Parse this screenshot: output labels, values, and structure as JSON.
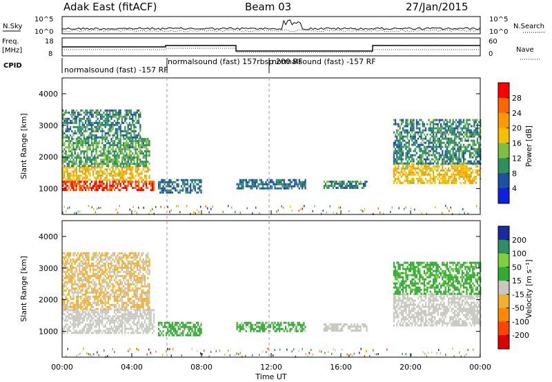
{
  "header": {
    "station": "Adak East (fitACF)",
    "beam": "Beam 03",
    "date": "27/Jan/2015"
  },
  "left_labels": {
    "nsky": "N.Sky",
    "freq_line1": "Freq.",
    "freq_line2": "[MHz]",
    "cpid": "CPID"
  },
  "right_labels": {
    "nsearch": "N.Search",
    "nave": "Nave"
  },
  "noise_panel": {
    "left_ticks": [
      "10^5",
      "10^0"
    ],
    "right_ticks": [
      "10^5",
      "10^0"
    ]
  },
  "freq_panel": {
    "left_ticks": [
      "18",
      "8"
    ],
    "right_ticks": [
      "60",
      "0"
    ]
  },
  "cpid_labels": [
    "normalsound (fast) -157 RF",
    "normalsound (fast) 157rbsp 200 RF",
    "normalsound (fast) -157 RF"
  ],
  "power_panel": {
    "ylabel": "Slant Range [km]",
    "y_ticks": [
      "4000",
      "3000",
      "2000",
      "1000"
    ],
    "colorbar_label": "Power [dB]",
    "colorbar_ticks": [
      "28",
      "24",
      "20",
      "16",
      "12",
      "8",
      "4"
    ],
    "colorbar_colors": [
      "#ff0000",
      "#ff6600",
      "#ff9900",
      "#f5c000",
      "#7fbf3f",
      "#2f8f5f",
      "#1e4fa0",
      "#1020e0"
    ]
  },
  "velocity_panel": {
    "ylabel": "Slant Range [km]",
    "y_ticks": [
      "4000",
      "3000",
      "2000",
      "1000"
    ],
    "colorbar_label": "Velocity [m s⁻¹]",
    "colorbar_ticks": [
      "200",
      "100",
      "50",
      "15",
      "-15",
      "-50",
      "-100",
      "-200"
    ],
    "colorbar_colors": [
      "#1a2aa0",
      "#2f8f5f",
      "#7fcf3f",
      "#33aa33",
      "#c8c8c0",
      "#f0b030",
      "#ff8800",
      "#ff4400",
      "#dd0000"
    ]
  },
  "x_axis": {
    "ticks": [
      "00:00",
      "04:00",
      "08:00",
      "12:00",
      "16:00",
      "20:00",
      "00:00"
    ],
    "label": "Time UT"
  },
  "chart_data": [
    {
      "type": "heatmap",
      "title": "Power",
      "xlabel": "Time UT",
      "ylabel": "Slant Range [km]",
      "x_range_hours": [
        0,
        24
      ],
      "ylim": [
        180,
        4500
      ],
      "colorbar": {
        "label": "Power [dB]",
        "range": [
          0,
          30
        ]
      },
      "regions": [
        {
          "t_start": 0.0,
          "t_end": 5.3,
          "range_km": [
            950,
            1250
          ],
          "power_db": 28
        },
        {
          "t_start": 0.0,
          "t_end": 5.0,
          "range_km": [
            1250,
            1700
          ],
          "power_db": 18
        },
        {
          "t_start": 0.0,
          "t_end": 5.0,
          "range_km": [
            1700,
            2600
          ],
          "power_db": 10
        },
        {
          "t_start": 0.0,
          "t_end": 4.5,
          "range_km": [
            2600,
            3500
          ],
          "power_db": 8
        },
        {
          "t_start": 5.5,
          "t_end": 8.0,
          "range_km": [
            900,
            1300
          ],
          "power_db": 6
        },
        {
          "t_start": 10.0,
          "t_end": 14.0,
          "range_km": [
            1000,
            1300
          ],
          "power_db": 6
        },
        {
          "t_start": 15.0,
          "t_end": 17.5,
          "range_km": [
            1050,
            1250
          ],
          "power_db": 8
        },
        {
          "t_start": 19.0,
          "t_end": 24.0,
          "range_km": [
            1200,
            1800
          ],
          "power_db": 18
        },
        {
          "t_start": 19.0,
          "t_end": 24.0,
          "range_km": [
            1800,
            3200
          ],
          "power_db": 8
        }
      ]
    },
    {
      "type": "heatmap",
      "title": "Velocity",
      "xlabel": "Time UT",
      "ylabel": "Slant Range [km]",
      "x_range_hours": [
        0,
        24
      ],
      "ylim": [
        180,
        4500
      ],
      "colorbar": {
        "label": "Velocity [m s-1]",
        "range": [
          -200,
          200
        ]
      },
      "regions": [
        {
          "t_start": 0.0,
          "t_end": 5.3,
          "range_km": [
            950,
            1700
          ],
          "velocity": 0
        },
        {
          "t_start": 0.0,
          "t_end": 5.0,
          "range_km": [
            1700,
            3500
          ],
          "velocity": -30
        },
        {
          "t_start": 5.5,
          "t_end": 8.0,
          "range_km": [
            900,
            1300
          ],
          "velocity": 40
        },
        {
          "t_start": 10.0,
          "t_end": 14.0,
          "range_km": [
            1000,
            1300
          ],
          "velocity": 40
        },
        {
          "t_start": 15.0,
          "t_end": 17.5,
          "range_km": [
            1050,
            1250
          ],
          "velocity": 0
        },
        {
          "t_start": 19.0,
          "t_end": 24.0,
          "range_km": [
            1200,
            2200
          ],
          "velocity": 0
        },
        {
          "t_start": 19.0,
          "t_end": 24.0,
          "range_km": [
            2200,
            3200
          ],
          "velocity": 60
        }
      ]
    }
  ]
}
